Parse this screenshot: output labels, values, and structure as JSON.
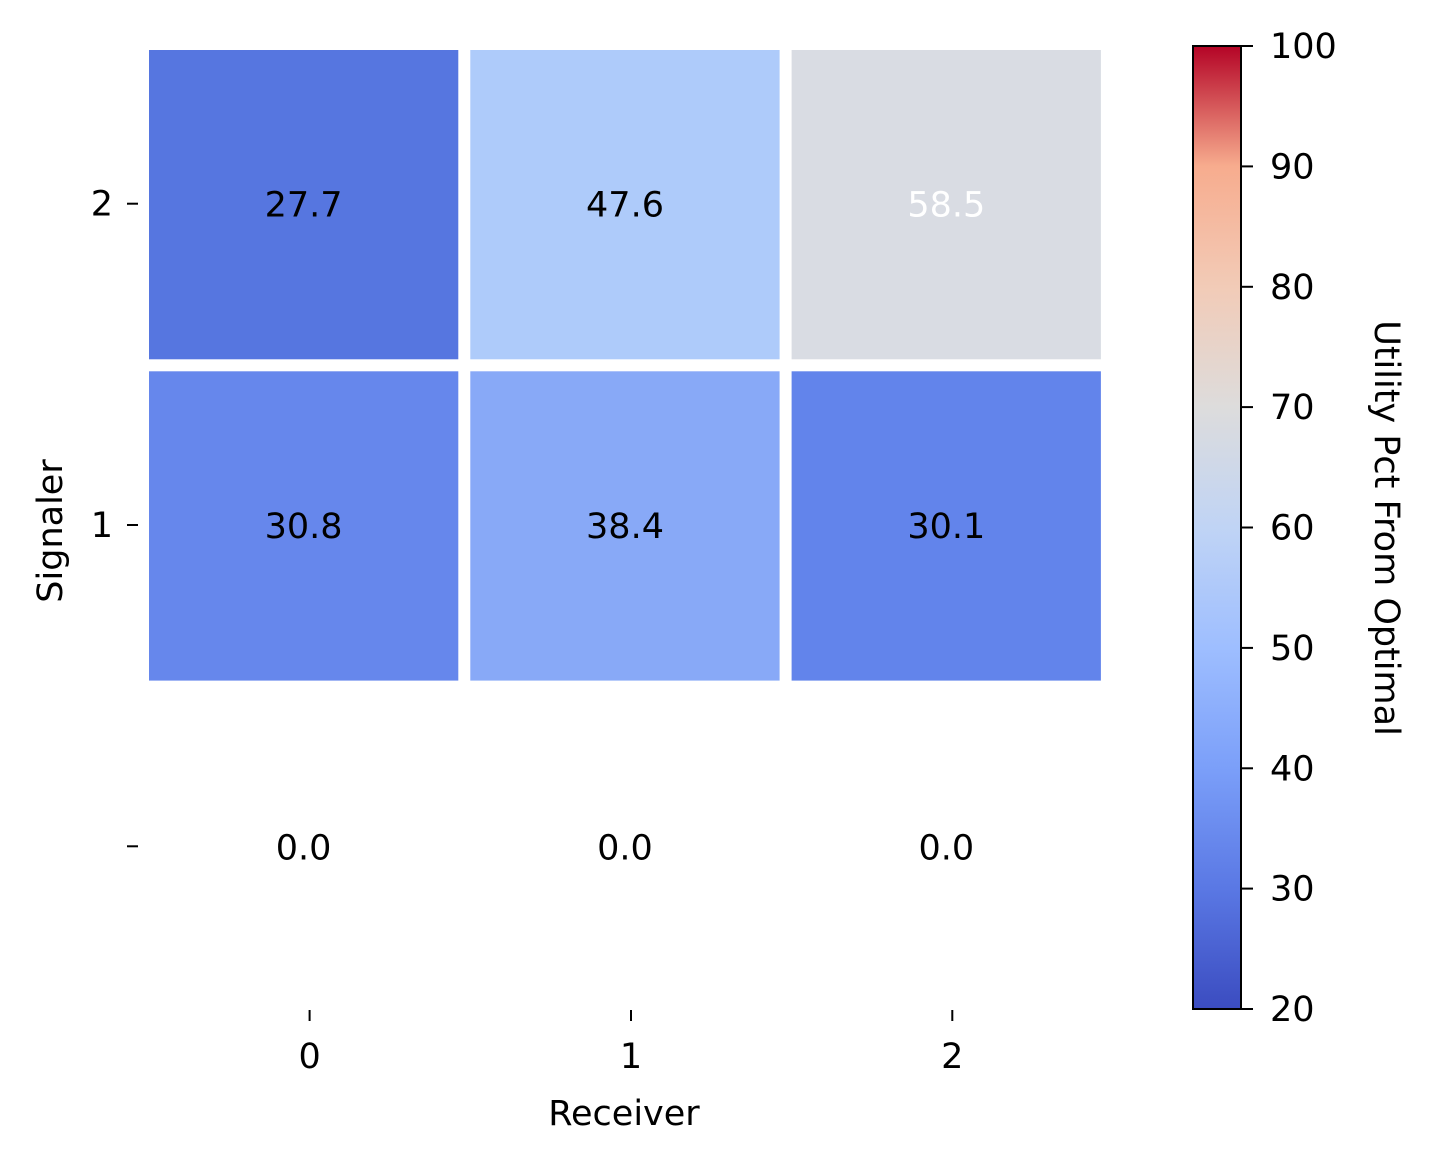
{
  "chart_data": {
    "type": "heatmap",
    "xlabel": "Receiver",
    "ylabel": "Signaler",
    "x_categories": [
      "0",
      "1",
      "2"
    ],
    "y_categories": [
      "2",
      "1",
      ""
    ],
    "values": [
      [
        27.7,
        47.6,
        58.5
      ],
      [
        30.8,
        38.4,
        30.1
      ],
      [
        0.0,
        0.0,
        0.0
      ]
    ],
    "display_values": [
      [
        "27.7",
        "47.6",
        "58.5"
      ],
      [
        "30.8",
        "38.4",
        "30.1"
      ],
      [
        "0.0",
        "0.0",
        "0.0"
      ]
    ],
    "cell_colors": [
      [
        "#5676e0",
        "#aecbfa",
        "#d9dce3"
      ],
      [
        "#6687ec",
        "#88a9f7",
        "#6284eb"
      ],
      [
        "#ffffff",
        "#ffffff",
        "#ffffff"
      ]
    ],
    "label_colors": [
      [
        "#000000",
        "#000000",
        "#ffffff"
      ],
      [
        "#000000",
        "#000000",
        "#000000"
      ],
      [
        "#000000",
        "#000000",
        "#000000"
      ]
    ],
    "colorbar": {
      "label": "Utility Pct From Optimal",
      "min": 20,
      "max": 100,
      "ticks": [
        "20",
        "30",
        "40",
        "50",
        "60",
        "70",
        "80",
        "90",
        "100"
      ],
      "colormap": "coolwarm"
    }
  }
}
